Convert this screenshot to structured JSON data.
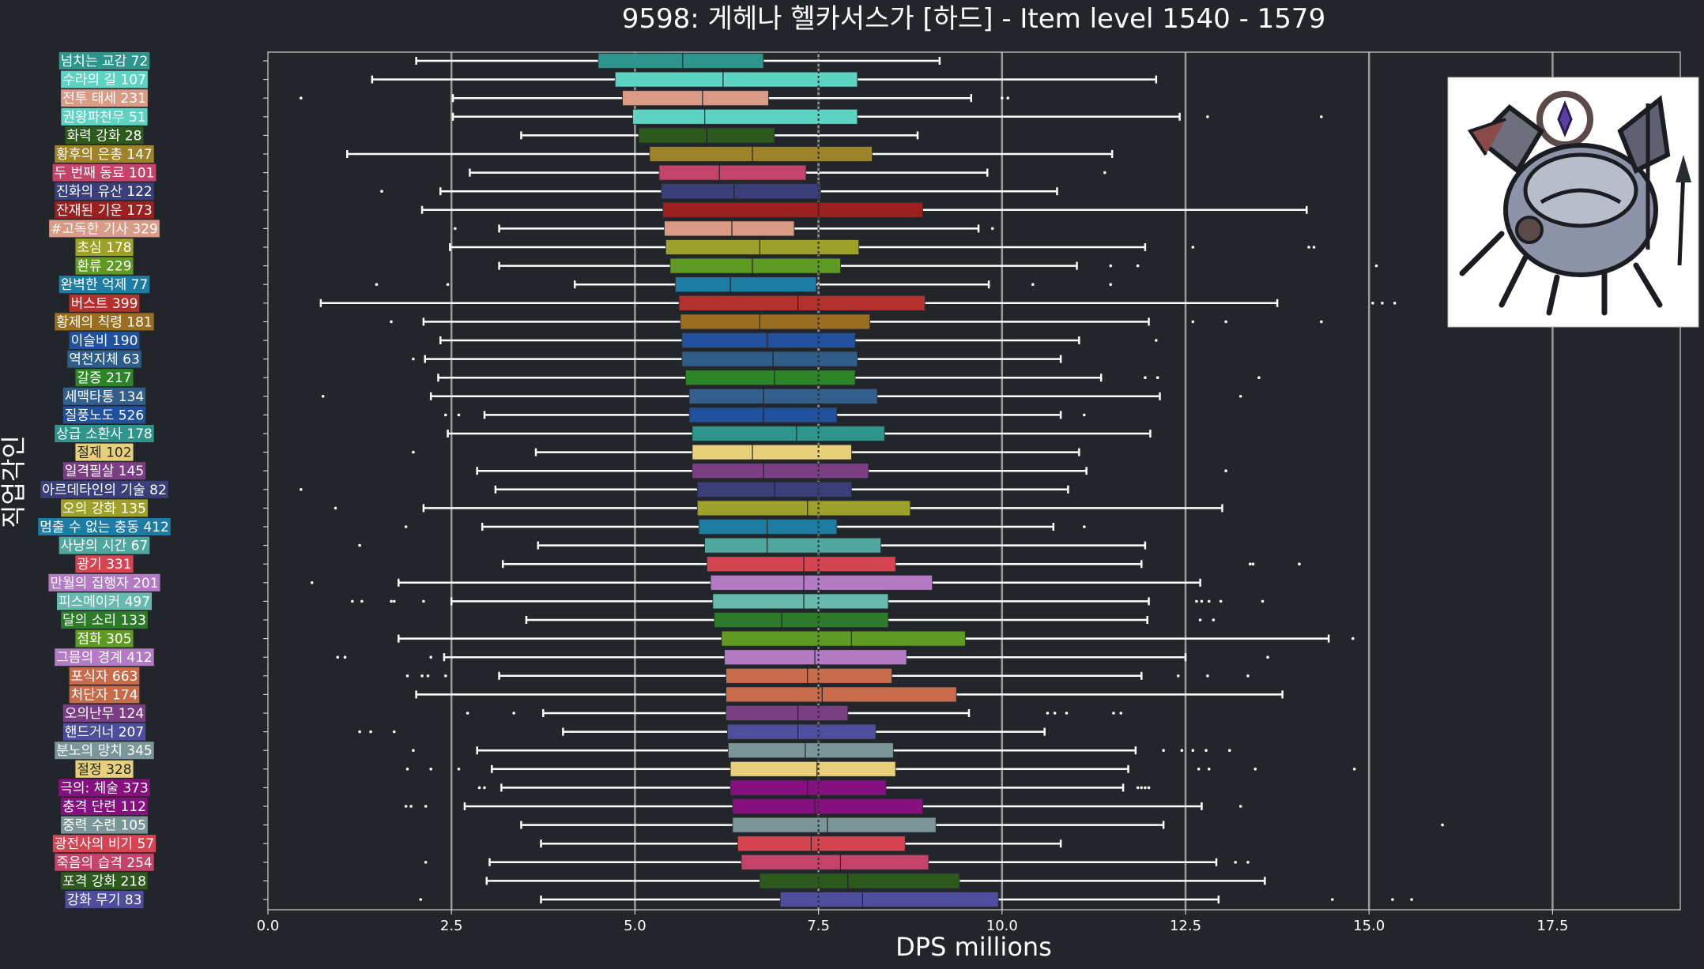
{
  "chart_data": {
    "type": "box",
    "title": "9598: 게헤나 헬카서스가 [하드] - Item level 1540 - 1579",
    "xlabel": "DPS millions",
    "ylabel": "직업각인",
    "xlim": [
      0,
      19.2
    ],
    "xticks": [
      0,
      2.5,
      5,
      7.5,
      10,
      12.5,
      15,
      17.5
    ],
    "xtick_labels": [
      "0.0",
      "2.5",
      "5.0",
      "7.5",
      "10.0",
      "12.5",
      "15.0",
      "17.5"
    ],
    "grid": "vertical",
    "reference_line": 7.5,
    "legend": "none",
    "categories": [
      {
        "label": "넘치는 교감 72",
        "color": "#2e958c",
        "whislo": 2.02,
        "q1": 4.5,
        "med": 5.65,
        "q3": 6.75,
        "whishi": 9.15,
        "fliers": []
      },
      {
        "label": "수라의 길 107",
        "color": "#5dd4c3",
        "whislo": 1.42,
        "q1": 4.73,
        "med": 6.2,
        "q3": 8.03,
        "whishi": 12.1,
        "fliers": []
      },
      {
        "label": "전투 태세 231",
        "color": "#d99a86",
        "whislo": 2.52,
        "q1": 4.83,
        "med": 5.92,
        "q3": 6.82,
        "whishi": 9.58,
        "fliers": [
          0.45,
          10.0,
          10.08
        ]
      },
      {
        "label": "권왕파천무 51",
        "color": "#5dd4c3",
        "whislo": 2.52,
        "q1": 4.97,
        "med": 5.95,
        "q3": 8.03,
        "whishi": 12.42,
        "fliers": [
          12.8,
          14.35
        ]
      },
      {
        "label": "화력 강화 28",
        "color": "#2d5a1c",
        "whislo": 3.45,
        "q1": 5.05,
        "med": 5.98,
        "q3": 6.9,
        "whishi": 8.85,
        "fliers": []
      },
      {
        "label": "황후의 은총 147",
        "color": "#9f832b",
        "whislo": 1.08,
        "q1": 5.2,
        "med": 6.6,
        "q3": 8.23,
        "whishi": 11.5,
        "fliers": []
      },
      {
        "label": "두 번째 동료 101",
        "color": "#c4436b",
        "whislo": 2.75,
        "q1": 5.33,
        "med": 6.15,
        "q3": 7.33,
        "whishi": 9.8,
        "fliers": [
          11.4
        ]
      },
      {
        "label": "진화의 유산 122",
        "color": "#3a3f7a",
        "whislo": 2.35,
        "q1": 5.36,
        "med": 6.35,
        "q3": 7.53,
        "whishi": 10.75,
        "fliers": [
          1.55
        ]
      },
      {
        "label": "잔재된 기운 173",
        "color": "#9c2020",
        "whislo": 2.1,
        "q1": 5.38,
        "med": 7.5,
        "q3": 8.92,
        "whishi": 14.15,
        "fliers": []
      },
      {
        "label": "#고독한 기사 329",
        "color": "#d99a86",
        "whislo": 3.15,
        "q1": 5.4,
        "med": 6.32,
        "q3": 7.17,
        "whishi": 9.68,
        "fliers": [
          2.55,
          9.87
        ]
      },
      {
        "label": "초심 178",
        "color": "#9ea129",
        "whislo": 2.48,
        "q1": 5.42,
        "med": 6.7,
        "q3": 8.05,
        "whishi": 11.95,
        "fliers": [
          12.6,
          14.18,
          14.25
        ]
      },
      {
        "label": "환류 229",
        "color": "#5f9a24",
        "whislo": 3.15,
        "q1": 5.48,
        "med": 6.6,
        "q3": 7.8,
        "whishi": 11.02,
        "fliers": [
          11.48,
          11.85,
          15.1
        ]
      },
      {
        "label": "완벽한 억제 77",
        "color": "#1d7ca3",
        "whislo": 4.18,
        "q1": 5.55,
        "med": 6.3,
        "q3": 7.47,
        "whishi": 9.82,
        "fliers": [
          1.48,
          2.45,
          10.42,
          11.48
        ]
      },
      {
        "label": "버스트 399",
        "color": "#b3302d",
        "whislo": 0.72,
        "q1": 5.6,
        "med": 7.22,
        "q3": 8.95,
        "whishi": 13.75,
        "fliers": [
          15.05,
          15.18,
          15.35
        ]
      },
      {
        "label": "황제의 칙령 181",
        "color": "#9a6e21",
        "whislo": 2.12,
        "q1": 5.62,
        "med": 6.7,
        "q3": 8.2,
        "whishi": 12.0,
        "fliers": [
          1.68,
          12.6,
          13.05,
          14.35
        ]
      },
      {
        "label": "이슬비 190",
        "color": "#21509e",
        "whislo": 2.35,
        "q1": 5.64,
        "med": 6.8,
        "q3": 8.0,
        "whishi": 11.05,
        "fliers": [
          12.1
        ]
      },
      {
        "label": "역천지체 63",
        "color": "#2e5d8a",
        "whislo": 2.14,
        "q1": 5.64,
        "med": 6.88,
        "q3": 8.03,
        "whishi": 10.8,
        "fliers": [
          1.98
        ]
      },
      {
        "label": "갈증 217",
        "color": "#2c8526",
        "whislo": 2.32,
        "q1": 5.69,
        "med": 6.9,
        "q3": 8.0,
        "whishi": 11.35,
        "fliers": [
          11.95,
          12.12,
          13.5
        ]
      },
      {
        "label": "세맥타통 134",
        "color": "#335f8c",
        "whislo": 2.22,
        "q1": 5.74,
        "med": 6.75,
        "q3": 8.3,
        "whishi": 12.15,
        "fliers": [
          0.75,
          13.25
        ]
      },
      {
        "label": "질풍노도 526",
        "color": "#21509e",
        "whislo": 2.95,
        "q1": 5.74,
        "med": 6.75,
        "q3": 7.75,
        "whishi": 10.8,
        "fliers": [
          2.42,
          2.6,
          11.12
        ]
      },
      {
        "label": "상급 소환사 178",
        "color": "#2e958c",
        "whislo": 2.45,
        "q1": 5.78,
        "med": 7.2,
        "q3": 8.4,
        "whishi": 12.02,
        "fliers": []
      },
      {
        "label": "절제 102",
        "color": "#e8d07a",
        "whislo": 3.65,
        "q1": 5.78,
        "med": 6.6,
        "q3": 7.95,
        "whishi": 11.05,
        "fliers": [
          1.98
        ]
      },
      {
        "label": "일격필살 145",
        "color": "#7b3e85",
        "whislo": 2.85,
        "q1": 5.78,
        "med": 6.75,
        "q3": 8.18,
        "whishi": 11.15,
        "fliers": [
          13.05
        ]
      },
      {
        "label": "아르데타인의 기술 82",
        "color": "#3a3f7a",
        "whislo": 3.1,
        "q1": 5.85,
        "med": 6.9,
        "q3": 7.95,
        "whishi": 10.9,
        "fliers": [
          0.45
        ]
      },
      {
        "label": "오의 강화 135",
        "color": "#9ea129",
        "whislo": 2.12,
        "q1": 5.85,
        "med": 7.35,
        "q3": 8.75,
        "whishi": 13.0,
        "fliers": [
          0.92
        ]
      },
      {
        "label": "멈출 수 없는 충동 412",
        "color": "#1d7ca3",
        "whislo": 2.92,
        "q1": 5.87,
        "med": 6.8,
        "q3": 7.75,
        "whishi": 10.7,
        "fliers": [
          1.88,
          11.12
        ]
      },
      {
        "label": "사냥의 시간 67",
        "color": "#4fa8a0",
        "whislo": 3.68,
        "q1": 5.95,
        "med": 6.8,
        "q3": 8.35,
        "whishi": 11.95,
        "fliers": [
          1.25
        ]
      },
      {
        "label": "광기 331",
        "color": "#d64452",
        "whislo": 3.2,
        "q1": 5.98,
        "med": 7.3,
        "q3": 8.55,
        "whishi": 11.9,
        "fliers": [
          13.38,
          13.42,
          14.05
        ]
      },
      {
        "label": "만월의 집행자 201",
        "color": "#b37bc4",
        "whislo": 1.78,
        "q1": 6.03,
        "med": 7.3,
        "q3": 9.05,
        "whishi": 12.7,
        "fliers": [
          0.6
        ]
      },
      {
        "label": "피스메이커 497",
        "color": "#67b8ad",
        "whislo": 2.5,
        "q1": 6.06,
        "med": 7.3,
        "q3": 8.45,
        "whishi": 12.0,
        "fliers": [
          1.15,
          1.28,
          1.68,
          1.72,
          2.12,
          12.65,
          12.72,
          12.82,
          12.98,
          13.55
        ]
      },
      {
        "label": "달의 소리 133",
        "color": "#2c7a2a",
        "whislo": 3.52,
        "q1": 6.08,
        "med": 7.0,
        "q3": 8.45,
        "whishi": 11.98,
        "fliers": [
          12.7,
          12.88
        ]
      },
      {
        "label": "점화 305",
        "color": "#5f9a24",
        "whislo": 1.78,
        "q1": 6.18,
        "med": 7.95,
        "q3": 9.5,
        "whishi": 14.45,
        "fliers": [
          14.78
        ]
      },
      {
        "label": "그믐의 경계 412",
        "color": "#b37bc4",
        "whislo": 2.4,
        "q1": 6.22,
        "med": 7.45,
        "q3": 8.7,
        "whishi": 12.5,
        "fliers": [
          0.95,
          1.05,
          2.22,
          13.62
        ]
      },
      {
        "label": "포식자 663",
        "color": "#c86b4a",
        "whislo": 3.15,
        "q1": 6.24,
        "med": 7.35,
        "q3": 8.5,
        "whishi": 11.9,
        "fliers": [
          1.9,
          2.1,
          2.18,
          2.42,
          12.4,
          12.8,
          13.35
        ]
      },
      {
        "label": "처단자 174",
        "color": "#c86b4a",
        "whislo": 2.02,
        "q1": 6.24,
        "med": 7.55,
        "q3": 9.38,
        "whishi": 13.82,
        "fliers": []
      },
      {
        "label": "오의난무 124",
        "color": "#7b3e85",
        "whislo": 3.75,
        "q1": 6.24,
        "med": 7.22,
        "q3": 7.9,
        "whishi": 9.55,
        "fliers": [
          2.72,
          3.35,
          10.62,
          10.72,
          10.88,
          11.52,
          11.62
        ]
      },
      {
        "label": "핸드거너 207",
        "color": "#4f4e9e",
        "whislo": 4.02,
        "q1": 6.26,
        "med": 7.22,
        "q3": 8.28,
        "whishi": 10.58,
        "fliers": [
          1.25,
          1.4,
          1.72
        ]
      },
      {
        "label": "분노의 망치 345",
        "color": "#7a9698",
        "whislo": 2.85,
        "q1": 6.27,
        "med": 7.32,
        "q3": 8.52,
        "whishi": 11.82,
        "fliers": [
          1.98,
          12.2,
          12.45,
          12.6,
          12.78,
          13.1
        ]
      },
      {
        "label": "절정 328",
        "color": "#e8d07a",
        "whislo": 3.05,
        "q1": 6.3,
        "med": 7.48,
        "q3": 8.55,
        "whishi": 11.72,
        "fliers": [
          1.9,
          2.22,
          2.6,
          12.68,
          12.82,
          13.45,
          14.8
        ]
      },
      {
        "label": "극의: 체술 373",
        "color": "#86107f",
        "whislo": 3.18,
        "q1": 6.3,
        "med": 7.35,
        "q3": 8.42,
        "whishi": 11.65,
        "fliers": [
          2.88,
          2.95,
          11.85,
          11.9,
          11.95,
          12.0
        ]
      },
      {
        "label": "충격 단련 112",
        "color": "#86107f",
        "whislo": 2.68,
        "q1": 6.33,
        "med": 7.45,
        "q3": 8.92,
        "whishi": 12.72,
        "fliers": [
          1.88,
          1.95,
          2.15,
          13.25
        ]
      },
      {
        "label": "중력 수련 105",
        "color": "#7a9698",
        "whislo": 3.45,
        "q1": 6.33,
        "med": 7.62,
        "q3": 9.1,
        "whishi": 12.2,
        "fliers": [
          16.0
        ]
      },
      {
        "label": "광전사의 비기 57",
        "color": "#d64452",
        "whislo": 3.72,
        "q1": 6.4,
        "med": 7.4,
        "q3": 8.68,
        "whishi": 10.8,
        "fliers": []
      },
      {
        "label": "죽음의 습격 254",
        "color": "#c4436b",
        "whislo": 3.02,
        "q1": 6.45,
        "med": 7.8,
        "q3": 9.0,
        "whishi": 12.92,
        "fliers": [
          2.15,
          13.18,
          13.35
        ]
      },
      {
        "label": "포격 강화 218",
        "color": "#2d5a1c",
        "whislo": 2.98,
        "q1": 6.7,
        "med": 7.9,
        "q3": 9.42,
        "whishi": 13.58,
        "fliers": []
      },
      {
        "label": "강화 무기 83",
        "color": "#4f4e9e",
        "whislo": 3.72,
        "q1": 6.98,
        "med": 8.1,
        "q3": 9.95,
        "whishi": 12.95,
        "fliers": [
          2.08,
          14.5,
          15.32,
          15.58
        ]
      }
    ]
  }
}
